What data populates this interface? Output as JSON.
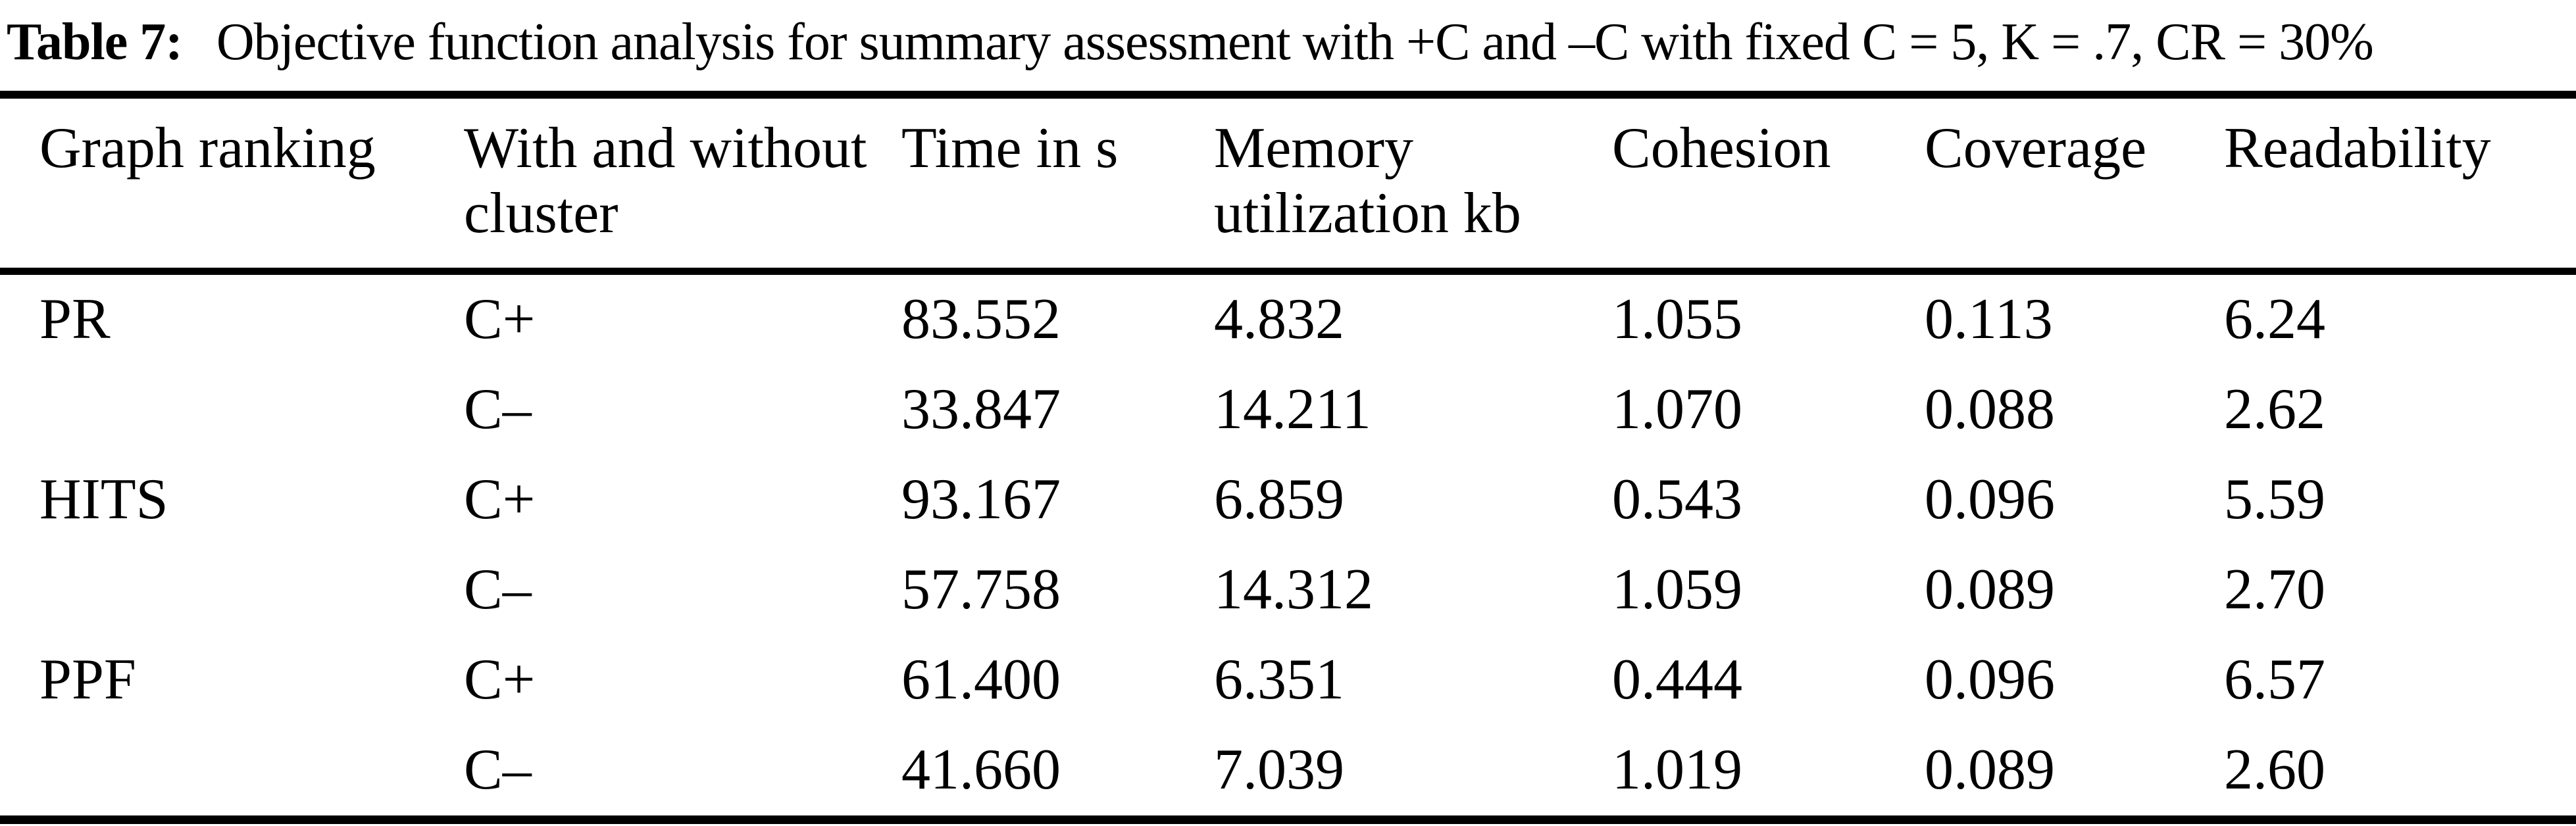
{
  "caption": {
    "label": "Table 7:",
    "text": "Objective function analysis for summary assessment with +C and –C with fixed C = 5, K = .7, CR = 30%"
  },
  "table": {
    "columns": [
      "Graph ranking",
      "With and without cluster",
      "Time in s",
      "Memory utilization kb",
      "Cohesion",
      "Coverage",
      "Readability"
    ],
    "rows": [
      [
        "PR",
        "C+",
        "83.552",
        "4.832",
        "1.055",
        "0.113",
        "6.24"
      ],
      [
        "",
        "C–",
        "33.847",
        "14.211",
        "1.070",
        "0.088",
        "2.62"
      ],
      [
        "HITS",
        "C+",
        "93.167",
        "6.859",
        "0.543",
        "0.096",
        "5.59"
      ],
      [
        "",
        "C–",
        "57.758",
        "14.312",
        "1.059",
        "0.089",
        "2.70"
      ],
      [
        "PPF",
        "C+",
        "61.400",
        "6.351",
        "0.444",
        "0.096",
        "6.57"
      ],
      [
        "",
        "C–",
        "41.660",
        "7.039",
        "1.019",
        "0.089",
        "2.60"
      ]
    ]
  },
  "colors": {
    "text": "#000000",
    "background": "#ffffff",
    "rule": "#000000"
  }
}
